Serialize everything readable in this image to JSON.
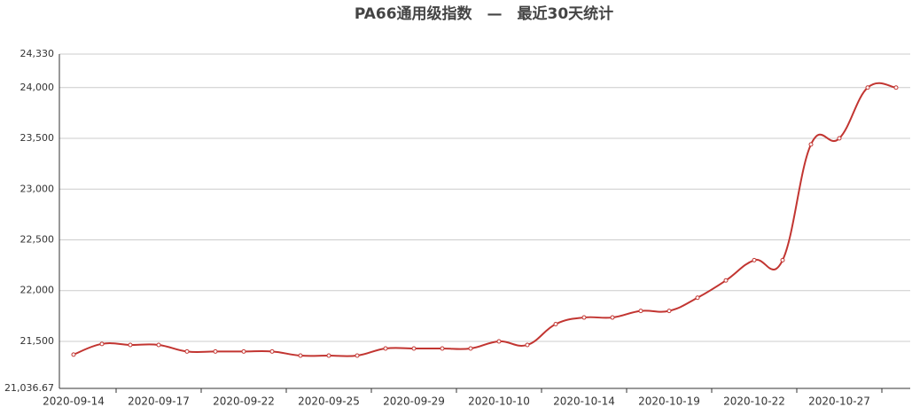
{
  "chart_data": {
    "type": "line",
    "title": "PA66通用级指数　—　最近30天统计",
    "categories": [
      "2020-09-14",
      null,
      null,
      "2020-09-17",
      null,
      null,
      "2020-09-22",
      null,
      null,
      "2020-09-25",
      null,
      null,
      "2020-09-29",
      null,
      null,
      "2020-10-10",
      null,
      null,
      "2020-10-14",
      null,
      null,
      "2020-10-19",
      null,
      null,
      "2020-10-22",
      null,
      null,
      "2020-10-27",
      null,
      null
    ],
    "values": [
      21370,
      21475,
      21465,
      21465,
      21400,
      21400,
      21400,
      21400,
      21360,
      21360,
      21360,
      21430,
      21430,
      21430,
      21430,
      21500,
      21465,
      21670,
      21735,
      21735,
      21800,
      21800,
      21930,
      22100,
      22300,
      22300,
      23440,
      23500,
      24000,
      24000
    ],
    "color": "#c23531",
    "ylim": [
      21036.67,
      24330
    ],
    "yticks": [
      {
        "value": 21036.67,
        "label": "21,036.67"
      },
      {
        "value": 21500,
        "label": "21,500"
      },
      {
        "value": 22000,
        "label": "22,000"
      },
      {
        "value": 22500,
        "label": "22,500"
      },
      {
        "value": 23000,
        "label": "23,000"
      },
      {
        "value": 23500,
        "label": "23,500"
      },
      {
        "value": 24000,
        "label": "24,000"
      },
      {
        "value": 24330,
        "label": "24,330"
      }
    ],
    "grid": true,
    "smooth": true
  }
}
